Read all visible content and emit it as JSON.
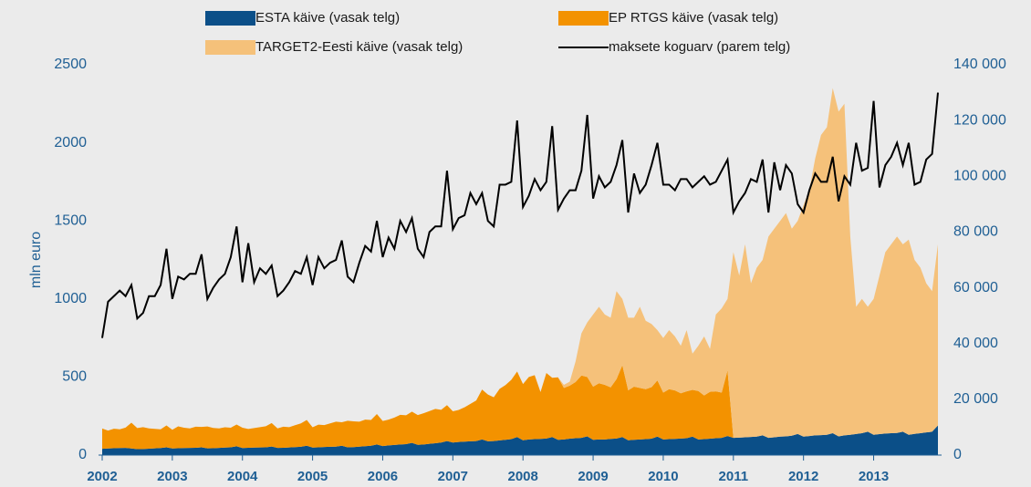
{
  "chart_data": {
    "type": "area",
    "y_label": "mln euro",
    "categories": [
      "2002",
      null,
      null,
      null,
      null,
      null,
      null,
      null,
      null,
      null,
      null,
      null,
      "2003",
      null,
      null,
      null,
      null,
      null,
      null,
      null,
      null,
      null,
      null,
      null,
      "2004",
      null,
      null,
      null,
      null,
      null,
      null,
      null,
      null,
      null,
      null,
      null,
      "2005",
      null,
      null,
      null,
      null,
      null,
      null,
      null,
      null,
      null,
      null,
      null,
      "2006",
      null,
      null,
      null,
      null,
      null,
      null,
      null,
      null,
      null,
      null,
      null,
      "2007",
      null,
      null,
      null,
      null,
      null,
      null,
      null,
      null,
      null,
      null,
      null,
      "2008",
      null,
      null,
      null,
      null,
      null,
      null,
      null,
      null,
      null,
      null,
      null,
      "2009",
      null,
      null,
      null,
      null,
      null,
      null,
      null,
      null,
      null,
      null,
      null,
      "2010",
      null,
      null,
      null,
      null,
      null,
      null,
      null,
      null,
      null,
      null,
      null,
      "2011",
      null,
      null,
      null,
      null,
      null,
      null,
      null,
      null,
      null,
      null,
      null,
      "2012",
      null,
      null,
      null,
      null,
      null,
      null,
      null,
      null,
      null,
      null,
      null,
      "2013",
      null,
      null,
      null,
      null,
      null,
      null,
      null,
      null,
      null,
      null,
      null
    ],
    "ylim": [
      0,
      2500
    ],
    "yticks": [
      0,
      500,
      1000,
      1500,
      2000,
      2500
    ],
    "y2lim": [
      0,
      140000
    ],
    "y2ticks": [
      0,
      {
        "value": 20000,
        "label": "20 000"
      },
      {
        "value": 40000,
        "label": "40 000"
      },
      {
        "value": 60000,
        "label": "60 000"
      },
      {
        "value": 80000,
        "label": "80 000"
      },
      {
        "value": 100000,
        "label": "100 000"
      },
      {
        "value": 120000,
        "label": "120 000"
      },
      {
        "value": 140000,
        "label": "140 000"
      }
    ],
    "grid": false,
    "series": [
      {
        "name": "ESTA käive (vasak telg)",
        "type": "area",
        "color": "#0b4f88",
        "values": [
          40,
          42,
          44,
          45,
          46,
          42,
          38,
          39,
          41,
          43,
          45,
          50,
          42,
          44,
          45,
          46,
          47,
          50,
          43,
          44,
          46,
          48,
          50,
          56,
          45,
          47,
          48,
          49,
          50,
          55,
          46,
          47,
          49,
          51,
          53,
          60,
          48,
          50,
          52,
          53,
          54,
          60,
          50,
          51,
          54,
          57,
          60,
          68,
          58,
          62,
          65,
          68,
          70,
          78,
          66,
          68,
          72,
          76,
          80,
          90,
          80,
          84,
          86,
          88,
          90,
          100,
          88,
          90,
          94,
          98,
          102,
          115,
          95,
          100,
          102,
          104,
          106,
          115,
          98,
          100,
          105,
          108,
          110,
          120,
          98,
          100,
          100,
          104,
          106,
          115,
          95,
          98,
          100,
          102,
          105,
          118,
          100,
          102,
          104,
          106,
          108,
          118,
          100,
          102,
          105,
          108,
          110,
          122,
          110,
          112,
          114,
          116,
          118,
          126,
          110,
          114,
          118,
          120,
          124,
          135,
          118,
          122,
          126,
          128,
          130,
          140,
          120,
          126,
          130,
          135,
          140,
          150,
          130,
          134,
          138,
          140,
          142,
          150,
          130,
          136,
          140,
          145,
          150,
          190
        ]
      },
      {
        "name": "EP RTGS käive (vasak telg)",
        "type": "area",
        "color": "#f39200",
        "values": [
          130,
          115,
          125,
          120,
          130,
          165,
          135,
          140,
          130,
          125,
          120,
          140,
          120,
          140,
          130,
          125,
          135,
          130,
          140,
          130,
          125,
          130,
          125,
          140,
          130,
          120,
          125,
          130,
          135,
          150,
          125,
          135,
          130,
          140,
          150,
          165,
          130,
          145,
          140,
          150,
          160,
          150,
          170,
          165,
          160,
          170,
          165,
          195,
          160,
          165,
          175,
          190,
          185,
          200,
          190,
          200,
          210,
          220,
          210,
          230,
          200,
          205,
          220,
          240,
          260,
          320,
          300,
          280,
          330,
          350,
          380,
          420,
          360,
          400,
          410,
          300,
          420,
          380,
          400,
          330,
          340,
          360,
          400,
          380,
          340,
          360,
          350,
          330,
          380,
          460,
          320,
          340,
          330,
          320,
          330,
          360,
          300,
          320,
          310,
          290,
          300,
          300,
          310,
          280,
          300,
          300,
          290,
          420,
          0,
          0,
          0,
          0,
          0,
          0,
          0,
          0,
          0,
          0,
          0,
          0,
          0,
          0,
          0,
          0,
          0,
          0,
          0,
          0,
          0,
          0,
          0,
          0,
          0,
          0,
          0,
          0,
          0,
          0,
          0,
          0,
          0,
          0,
          0,
          0
        ]
      },
      {
        "name": "TARGET2-Eesti käive (vasak telg)",
        "type": "area",
        "color": "#f5c17a",
        "values": [
          0,
          0,
          0,
          0,
          0,
          0,
          0,
          0,
          0,
          0,
          0,
          0,
          0,
          0,
          0,
          0,
          0,
          0,
          0,
          0,
          0,
          0,
          0,
          0,
          0,
          0,
          0,
          0,
          0,
          0,
          0,
          0,
          0,
          0,
          0,
          0,
          0,
          0,
          0,
          0,
          0,
          0,
          0,
          0,
          0,
          0,
          0,
          0,
          0,
          0,
          0,
          0,
          0,
          0,
          0,
          0,
          0,
          0,
          0,
          0,
          0,
          0,
          0,
          0,
          0,
          0,
          0,
          0,
          0,
          0,
          0,
          0,
          0,
          0,
          0,
          0,
          0,
          0,
          0,
          20,
          25,
          132,
          270,
          350,
          462,
          490,
          450,
          446,
          564,
          425,
          465,
          442,
          520,
          438,
          405,
          322,
          350,
          378,
          346,
          304,
          392,
          232,
          290,
          378,
          275,
          492,
          540,
          458,
          1190,
          1038,
          1236,
          984,
          1082,
          1124,
          1290,
          1336,
          1382,
          1430,
          1326,
          1365,
          1482,
          1578,
          1774,
          1922,
          1970,
          2210,
          2080,
          2124,
          1270,
          815,
          860,
          800,
          870,
          1016,
          1162,
          1210,
          1258,
          1200,
          1250,
          1114,
          1060,
          955,
          900,
          1160
        ]
      },
      {
        "name": "maksete koguarv (parem telg)",
        "type": "line",
        "axis": "y2",
        "color": "#000000",
        "values": [
          42000,
          55000,
          57000,
          59000,
          57000,
          61000,
          49000,
          51000,
          57000,
          57000,
          61000,
          74000,
          56000,
          64000,
          63000,
          65000,
          65000,
          72000,
          56000,
          60000,
          63000,
          65000,
          71000,
          82000,
          62000,
          76000,
          62000,
          67000,
          65000,
          68000,
          57000,
          59000,
          62000,
          66000,
          65000,
          71000,
          61000,
          71000,
          67000,
          69000,
          70000,
          77000,
          64000,
          62000,
          69000,
          75000,
          73000,
          84000,
          71000,
          78000,
          74000,
          84000,
          80000,
          85000,
          74000,
          71000,
          80000,
          82000,
          82000,
          102000,
          81000,
          85000,
          86000,
          94000,
          90000,
          94000,
          84000,
          82000,
          97000,
          97000,
          98000,
          120000,
          89000,
          93000,
          99000,
          95000,
          98000,
          118000,
          88000,
          92000,
          95000,
          95000,
          102000,
          122000,
          92000,
          100000,
          96000,
          98000,
          104000,
          113000,
          87000,
          101000,
          94000,
          97000,
          104000,
          112000,
          97000,
          97000,
          95000,
          99000,
          99000,
          96000,
          98000,
          100000,
          97000,
          98000,
          102000,
          106000,
          87000,
          91000,
          94000,
          99000,
          98000,
          106000,
          87000,
          105000,
          95000,
          104000,
          101000,
          90000,
          87000,
          95000,
          101000,
          98000,
          98000,
          107000,
          91000,
          100000,
          97000,
          112000,
          102000,
          103000,
          127000,
          96000,
          104000,
          107000,
          112000,
          104000,
          112000,
          97000,
          98000,
          106000,
          108000,
          130000
        ]
      }
    ]
  }
}
